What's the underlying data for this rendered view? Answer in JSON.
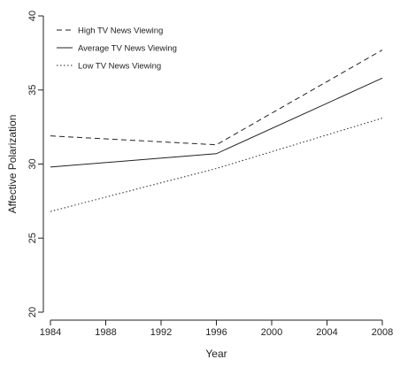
{
  "chart_data": {
    "type": "line",
    "title": "",
    "xlabel": "Year",
    "ylabel": "Affective Polarization",
    "xlim": [
      1984,
      2008
    ],
    "ylim": [
      20,
      40
    ],
    "x_ticks": [
      1984,
      1988,
      1992,
      1996,
      2000,
      2004,
      2008
    ],
    "y_ticks": [
      20,
      25,
      30,
      35,
      40
    ],
    "grid": false,
    "legend_position": "top-left",
    "series": [
      {
        "name": "High TV News Viewing",
        "x": [
          1984,
          1996,
          2008
        ],
        "y": [
          31.9,
          31.3,
          37.7
        ],
        "style": "dashed"
      },
      {
        "name": "Average TV News Viewing",
        "x": [
          1984,
          1996,
          2008
        ],
        "y": [
          29.8,
          30.7,
          35.8
        ],
        "style": "solid"
      },
      {
        "name": "Low TV News Viewing",
        "x": [
          1984,
          1996,
          2008
        ],
        "y": [
          26.8,
          29.7,
          33.1
        ],
        "style": "dotted"
      }
    ]
  }
}
